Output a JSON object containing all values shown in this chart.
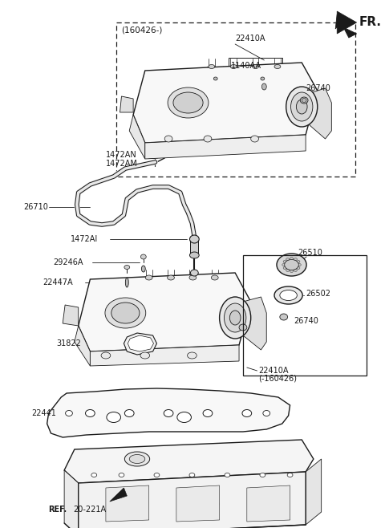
{
  "bg_color": "#ffffff",
  "line_color": "#1a1a1a",
  "fig_width": 4.8,
  "fig_height": 6.58,
  "dpi": 100,
  "fr_label": "FR.",
  "labels": {
    "160426": "(160426-)",
    "22410A_t": "22410A",
    "1140AA": "1140AA",
    "26740_t": "26740",
    "1472AN": "1472AN",
    "1472AM": "1472AM",
    "26710": "26710",
    "1472AI": "1472AI",
    "29246A": "29246A",
    "22447A": "22447A",
    "26510": "26510",
    "26502": "26502",
    "26740_m": "26740",
    "31822": "31822",
    "22410A_b": "22410A",
    "160426b": "(-160426)",
    "22441": "22441",
    "REF": "REF.",
    "20221A": "20-221A"
  }
}
